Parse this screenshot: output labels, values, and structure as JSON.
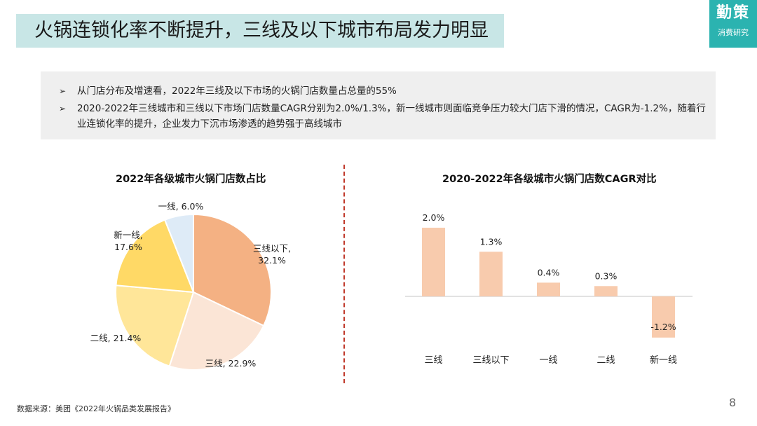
{
  "header": {
    "title": "火锅连锁化率不断提升，三线及以下城市布局发力明显",
    "logo_main": "勤策",
    "logo_sub": "消费研究"
  },
  "summary": {
    "bullets": [
      "从门店分布及增速看，2022年三线及以下市场的火锅门店数量占总量的55%",
      "2020-2022年三线城市和三线以下市场门店数量CAGR分别为2.0%/1.3%，新一线城市则面临竞争压力较大门店下滑的情况，CAGR为-1.2%，随着行业连锁化率的提升，企业发力下沉市场渗透的趋势强于高线城市"
    ]
  },
  "chart_data": [
    {
      "type": "pie",
      "title": "2022年各级城市火锅门店数占比",
      "slices": [
        {
          "label": "三线以下",
          "value": 32.1,
          "display": "32.1%",
          "color": "#f4b183"
        },
        {
          "label": "三线",
          "value": 22.9,
          "display": "22.9%",
          "color": "#fbe5d6"
        },
        {
          "label": "二线",
          "value": 21.4,
          "display": "21.4%",
          "color": "#ffe699"
        },
        {
          "label": "新一线",
          "value": 17.6,
          "display": "17.6%",
          "color": "#ffd966"
        },
        {
          "label": "一线",
          "value": 6.0,
          "display": "6.0%",
          "color": "#deebf7"
        }
      ]
    },
    {
      "type": "bar",
      "title": "2020-2022年各级城市火锅门店数CAGR对比",
      "categories": [
        "三线",
        "三线以下",
        "一线",
        "二线",
        "新一线"
      ],
      "values": [
        2.0,
        1.3,
        0.4,
        0.3,
        -1.2
      ],
      "value_labels": [
        "2.0%",
        "1.3%",
        "0.4%",
        "0.3%",
        "-1.2%"
      ],
      "color": "#f8cbad"
    }
  ],
  "footer": {
    "source": "数据来源：美团《2022年火锅品类发展报告》",
    "page": "8"
  }
}
